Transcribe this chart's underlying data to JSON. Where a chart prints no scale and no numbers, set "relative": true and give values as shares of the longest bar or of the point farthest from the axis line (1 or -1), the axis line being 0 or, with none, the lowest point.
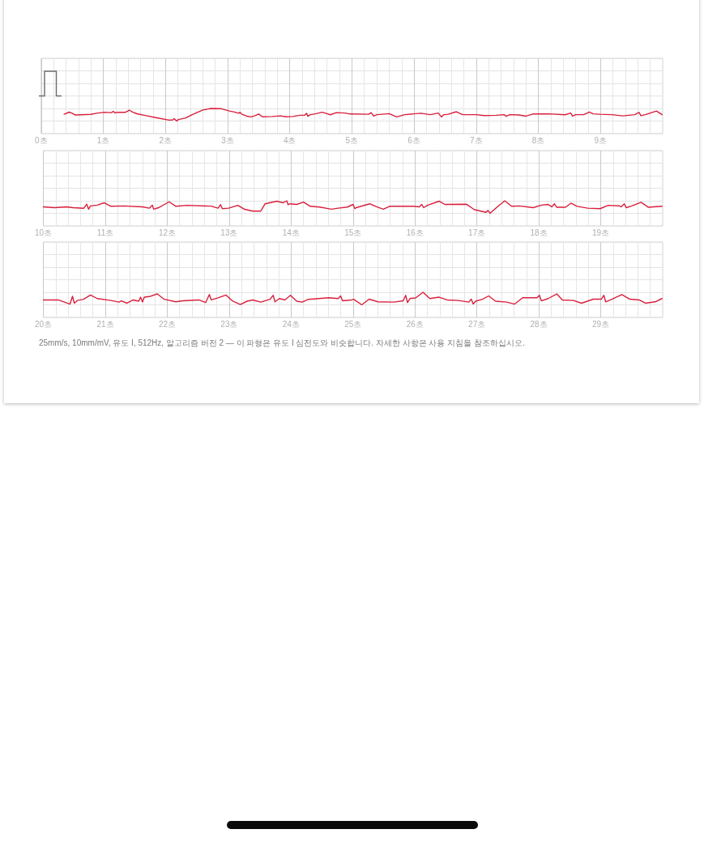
{
  "chart_data": [
    {
      "type": "line",
      "relative": true,
      "x": [
        0.37,
        0.45,
        0.5,
        0.55,
        0.8,
        0.89,
        1.02,
        1.13,
        1.16,
        1.19,
        1.22,
        1.35,
        1.42,
        1.47,
        1.54,
        1.69,
        1.86,
        2.06,
        2.12,
        2.14,
        2.18,
        2.21,
        2.32,
        2.43,
        2.49,
        2.6,
        2.73,
        2.9,
        3.03,
        3.11,
        3.18,
        3.2,
        3.23,
        3.31,
        3.38,
        3.44,
        3.5,
        3.56,
        3.72,
        3.85,
        3.94,
        4.05,
        4.16,
        4.24,
        4.27,
        4.29,
        4.33,
        4.41,
        4.52,
        4.59,
        4.65,
        4.75,
        4.89,
        4.97,
        5.27,
        5.31,
        5.35,
        5.4,
        5.6,
        5.72,
        5.85,
        6.11,
        6.26,
        6.39,
        6.44,
        6.48,
        6.55,
        6.68,
        6.78,
        7.0,
        7.13,
        7.32,
        7.45,
        7.48,
        7.54,
        7.69,
        7.8,
        7.91,
        8.17,
        8.43,
        8.52,
        8.55,
        8.6,
        8.73,
        8.82,
        8.88,
        8.99,
        9.18,
        9.36,
        9.55,
        9.62,
        9.65,
        9.72,
        9.9,
        9.99
      ],
      "series": [
        {
          "color": "#d81f3c",
          "values": [
            0.54,
            0.71,
            0.62,
            0.48,
            0.53,
            0.62,
            0.7,
            0.67,
            0.77,
            0.64,
            0.7,
            0.69,
            0.87,
            0.72,
            0.58,
            0.43,
            0.26,
            0.07,
            0.1,
            0.19,
            0,
            0.12,
            0.23,
            0.51,
            0.64,
            0.88,
            1,
            0.98,
            0.8,
            0.72,
            0.62,
            0.7,
            0.54,
            0.39,
            0.33,
            0.43,
            0.56,
            0.34,
            0.36,
            0.41,
            0.34,
            0.36,
            0.46,
            0.47,
            0.62,
            0.38,
            0.51,
            0.57,
            0.7,
            0.6,
            0.5,
            0.67,
            0.64,
            0.56,
            0.54,
            0.67,
            0.39,
            0.51,
            0.59,
            0.33,
            0.51,
            0.62,
            0.51,
            0.64,
            0.33,
            0.51,
            0.54,
            0.74,
            0.51,
            0.51,
            0.44,
            0.46,
            0.51,
            0.38,
            0.51,
            0.48,
            0.39,
            0.56,
            0.57,
            0.5,
            0.64,
            0.39,
            0.51,
            0.51,
            0.72,
            0.57,
            0.54,
            0.51,
            0.41,
            0.51,
            0.69,
            0.43,
            0.51,
            0.8,
            0.51
          ]
        }
      ],
      "xlim": [
        0,
        10
      ],
      "xticks": [
        {
          "value": 0,
          "label": "0초"
        },
        {
          "value": 1,
          "label": "1초"
        },
        {
          "value": 2,
          "label": "2초"
        },
        {
          "value": 3,
          "label": "3초"
        },
        {
          "value": 4,
          "label": "4초"
        },
        {
          "value": 5,
          "label": "5초"
        },
        {
          "value": 6,
          "label": "6초"
        },
        {
          "value": 7,
          "label": "7초"
        },
        {
          "value": 8,
          "label": "8초"
        },
        {
          "value": 9,
          "label": "9초"
        }
      ],
      "grid": true
    },
    {
      "type": "line",
      "relative": true,
      "x": [
        10.0,
        10.18,
        10.37,
        10.48,
        10.65,
        10.7,
        10.73,
        10.76,
        10.87,
        10.98,
        11.09,
        11.3,
        11.6,
        11.71,
        11.76,
        11.78,
        11.86,
        12.03,
        12.14,
        12.32,
        12.71,
        12.82,
        12.86,
        12.89,
        12.99,
        13.14,
        13.25,
        13.38,
        13.51,
        13.58,
        13.77,
        13.87,
        13.93,
        13.95,
        13.98,
        14.09,
        14.2,
        14.31,
        14.46,
        14.65,
        14.76,
        14.91,
        15.0,
        15.03,
        15.05,
        15.27,
        15.38,
        15.49,
        15.59,
        15.98,
        16.07,
        16.11,
        16.14,
        16.2,
        16.39,
        16.48,
        16.83,
        16.96,
        17.15,
        17.18,
        17.21,
        17.35,
        17.45,
        17.56,
        17.69,
        17.91,
        18.04,
        18.15,
        18.21,
        18.25,
        18.29,
        18.43,
        18.52,
        18.62,
        18.79,
        18.99,
        19.12,
        19.29,
        19.33,
        19.38,
        19.41,
        19.49,
        19.65,
        19.77,
        19.85,
        19.99
      ],
      "series": [
        {
          "color": "#d81f3c",
          "values": [
            0.52,
            0.45,
            0.52,
            0.45,
            0.4,
            0.73,
            0.33,
            0.59,
            0.65,
            0.84,
            0.56,
            0.59,
            0.52,
            0.41,
            0.65,
            0.33,
            0.45,
            0.92,
            0.56,
            0.64,
            0.57,
            0.41,
            0.69,
            0.37,
            0.41,
            0.64,
            0.32,
            0.18,
            0.18,
            0.76,
            0.97,
            0.84,
            1,
            0.69,
            0.76,
            0.71,
            0.9,
            0.56,
            0.5,
            0.33,
            0.41,
            0.5,
            0.71,
            0.37,
            0.45,
            0.76,
            0.52,
            0.33,
            0.56,
            0.56,
            0.52,
            0.71,
            0.45,
            0.64,
            0.97,
            0.71,
            0.73,
            0.29,
            0.08,
            0.24,
            0,
            0.6,
            1,
            0.56,
            0.59,
            0.45,
            0.65,
            0.71,
            0.52,
            0.76,
            0.48,
            0.48,
            0.81,
            0.56,
            0.41,
            0.37,
            0.64,
            0.6,
            0.52,
            0.76,
            0.45,
            0.57,
            0.88,
            0.48,
            0.52,
            0.56
          ]
        }
      ],
      "xlim": [
        10,
        20
      ],
      "xticks": [
        {
          "value": 10,
          "label": "10초"
        },
        {
          "value": 11,
          "label": "11초"
        },
        {
          "value": 12,
          "label": "12초"
        },
        {
          "value": 13,
          "label": "13초"
        },
        {
          "value": 14,
          "label": "14초"
        },
        {
          "value": 15,
          "label": "15초"
        },
        {
          "value": 16,
          "label": "16초"
        },
        {
          "value": 17,
          "label": "17초"
        },
        {
          "value": 18,
          "label": "18초"
        },
        {
          "value": 19,
          "label": "19초"
        }
      ],
      "grid": true
    },
    {
      "type": "line",
      "relative": true,
      "x": [
        20.0,
        20.24,
        20.43,
        20.47,
        20.5,
        20.55,
        20.65,
        20.76,
        20.87,
        21.09,
        21.22,
        21.26,
        21.35,
        21.45,
        21.54,
        21.57,
        21.6,
        21.63,
        21.73,
        21.84,
        21.95,
        22.14,
        22.25,
        22.51,
        22.62,
        22.68,
        22.71,
        22.82,
        22.95,
        23.05,
        23.18,
        23.29,
        23.38,
        23.51,
        23.66,
        23.71,
        23.74,
        23.81,
        23.9,
        23.99,
        24.09,
        24.18,
        24.28,
        24.61,
        24.76,
        24.8,
        24.83,
        24.98,
        25.01,
        25.14,
        25.26,
        25.4,
        25.66,
        25.81,
        25.85,
        25.88,
        25.92,
        26.01,
        26.13,
        26.24,
        26.39,
        26.52,
        26.7,
        26.87,
        26.91,
        26.94,
        26.98,
        27.09,
        27.19,
        27.3,
        27.48,
        27.61,
        27.74,
        27.97,
        28.01,
        28.04,
        28.15,
        28.29,
        28.38,
        28.56,
        28.69,
        28.88,
        29.01,
        29.05,
        29.08,
        29.18,
        29.34,
        29.47,
        29.62,
        29.72,
        29.88,
        29.99
      ],
      "series": [
        {
          "color": "#d81f3c",
          "values": [
            0.39,
            0.39,
            0.06,
            0.68,
            0.13,
            0.35,
            0.44,
            0.78,
            0.5,
            0.35,
            0.22,
            0.32,
            0.13,
            0.39,
            0.29,
            0.61,
            0.22,
            0.61,
            0.68,
            0.87,
            0.44,
            0.24,
            0.32,
            0.39,
            0.18,
            0.82,
            0.39,
            0.56,
            0.78,
            0.32,
            0.03,
            0.29,
            0.39,
            0.22,
            0.44,
            0.76,
            0.24,
            0.5,
            0.39,
            0.76,
            0.29,
            0.22,
            0.44,
            0.56,
            0.5,
            0.71,
            0.32,
            0.39,
            0.44,
            0,
            0.45,
            0.24,
            0.22,
            0.32,
            0.76,
            0.18,
            0.5,
            0.55,
            1,
            0.5,
            0.61,
            0.39,
            0.35,
            0.22,
            0.45,
            0.06,
            0.29,
            0.44,
            0.71,
            0.29,
            0.22,
            0.06,
            0.56,
            0.56,
            0.76,
            0.32,
            0.5,
            0.87,
            0.39,
            0.35,
            0.13,
            0.45,
            0.45,
            0.76,
            0.24,
            0.44,
            0.82,
            0.45,
            0.39,
            0.13,
            0.24,
            0.5
          ]
        }
      ],
      "xlim": [
        20,
        30
      ],
      "xticks": [
        {
          "value": 20,
          "label": "20초"
        },
        {
          "value": 21,
          "label": "21초"
        },
        {
          "value": 22,
          "label": "22초"
        },
        {
          "value": 23,
          "label": "23초"
        },
        {
          "value": 24,
          "label": "24초"
        },
        {
          "value": 25,
          "label": "25초"
        },
        {
          "value": 26,
          "label": "26초"
        },
        {
          "value": 27,
          "label": "27초"
        },
        {
          "value": 28,
          "label": "28초"
        },
        {
          "value": 29,
          "label": "29초"
        }
      ],
      "grid": true,
      "annotations": [
        "25mm/s, 10mm/mV, 유도 I, 512Hz, 알고리즘 버전 2 — 이 파형은 유도 I 심전도와 비슷합니다. 자세한 사항은 사용 지침을 참조하십시오."
      ]
    }
  ]
}
